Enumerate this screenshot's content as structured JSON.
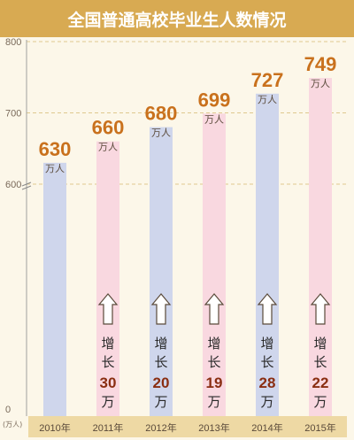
{
  "chart_data": {
    "type": "bar",
    "title": "全国普通高校毕业生人数情况",
    "ylabel_unit": "(万人)",
    "yticks": [
      "800",
      "700",
      "600",
      "0"
    ],
    "categories": [
      "2010年",
      "2011年",
      "2012年",
      "2013年",
      "2014年",
      "2015年"
    ],
    "values": [
      630,
      660,
      680,
      699,
      727,
      749
    ],
    "value_unit": "万人",
    "increase_prefix": [
      "增",
      "长"
    ],
    "increase_suffix": "万",
    "increases": [
      null,
      30,
      20,
      19,
      28,
      22
    ],
    "axis_break": {
      "from": 0,
      "to": 600
    },
    "ylim": [
      0,
      800
    ],
    "colors": {
      "bar_blue": "#cfd6ec",
      "bar_pink": "#f9d8e0",
      "value": "#c9711d",
      "increase": "#8a2e12",
      "title_bg": "#d8aa52",
      "cat_bg": "#eed9a4",
      "grid": "#dfc88e",
      "background": "#fcf7e9"
    }
  }
}
